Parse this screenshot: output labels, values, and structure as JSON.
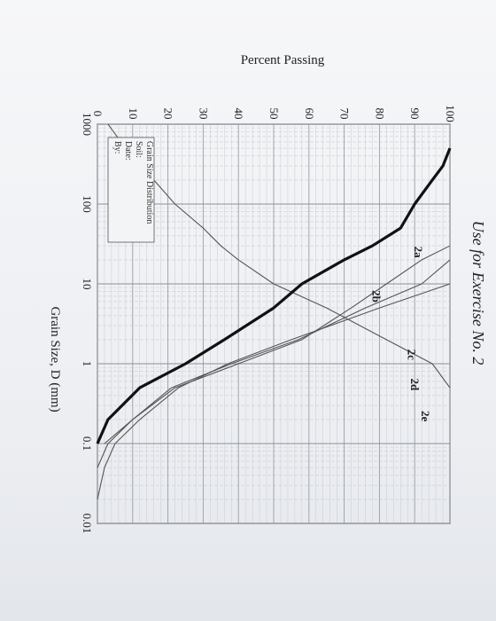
{
  "header": {
    "note": "Use for Exercise No. 2"
  },
  "chart_data": {
    "type": "line",
    "x_scale": "log",
    "xlim": [
      1000,
      0.01
    ],
    "ylim": [
      0,
      100
    ],
    "xlabel": "Grain Size, D (mm)",
    "ylabel": "Percent Passing",
    "x_ticks": [
      "1000",
      "100",
      "10",
      "1",
      "0.1",
      "0.01"
    ],
    "x_tick_values": [
      1000,
      100,
      10,
      1,
      0.1,
      0.01
    ],
    "y_ticks": [
      "0",
      "10",
      "20",
      "30",
      "40",
      "50",
      "60",
      "70",
      "80",
      "90",
      "100"
    ],
    "y_tick_values": [
      0,
      10,
      20,
      30,
      40,
      50,
      60,
      70,
      80,
      90,
      100
    ],
    "grid": true,
    "series": [
      {
        "name": "2a",
        "bold": false,
        "x": [
          1000,
          500,
          200,
          100,
          50,
          30,
          20,
          10,
          5,
          2,
          1,
          0.5
        ],
        "y": [
          3,
          8,
          16,
          22,
          30,
          35,
          40,
          50,
          65,
          82,
          95,
          100
        ]
      },
      {
        "name": "2b",
        "bold": true,
        "x": [
          0.1,
          0.2,
          0.5,
          1,
          2,
          5,
          10,
          20,
          30,
          50,
          100,
          200,
          300,
          500
        ],
        "y": [
          0,
          3,
          12,
          25,
          36,
          50,
          58,
          70,
          78,
          86,
          90,
          95,
          98,
          100
        ]
      },
      {
        "name": "2c",
        "bold": false,
        "x": [
          0.1,
          0.2,
          0.5,
          1,
          2,
          5,
          10,
          20,
          30
        ],
        "y": [
          2,
          10,
          22,
          40,
          58,
          72,
          82,
          92,
          100
        ]
      },
      {
        "name": "2d",
        "bold": false,
        "x": [
          0.05,
          0.1,
          0.2,
          0.5,
          1,
          2,
          5,
          10,
          20
        ],
        "y": [
          0,
          3,
          10,
          21,
          38,
          57,
          76,
          92,
          100
        ]
      },
      {
        "name": "2e",
        "bold": false,
        "x": [
          0.02,
          0.05,
          0.1,
          0.2,
          0.5,
          1,
          2,
          5,
          10
        ],
        "y": [
          0,
          2,
          5,
          12,
          23,
          37,
          55,
          80,
          100
        ]
      }
    ],
    "curve_labels": [
      "2a",
      "2b",
      "2c",
      "2d",
      "2e"
    ],
    "legend": {
      "placement": "bottom-left",
      "lines": [
        "Grain Size Distribution",
        "Soil:",
        "Date:",
        "By:"
      ]
    }
  }
}
